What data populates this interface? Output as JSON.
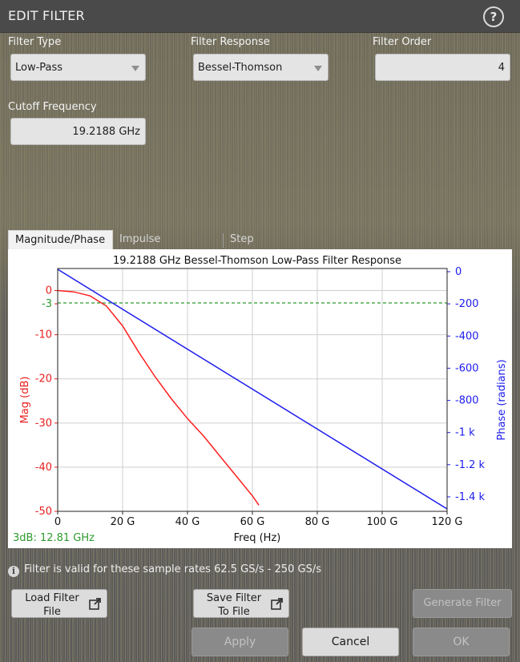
{
  "dialog": {
    "title": "EDIT FILTER",
    "help_icon": "question-circle-icon",
    "help_glyph": "?"
  },
  "fields": {
    "filter_type": {
      "label": "Filter Type",
      "value": "Low-Pass"
    },
    "filter_response": {
      "label": "Filter Response",
      "value": "Bessel-Thomson"
    },
    "filter_order": {
      "label": "Filter Order",
      "value": "4"
    },
    "cutoff_frequency": {
      "label": "Cutoff Frequency",
      "value": "19.2188 GHz"
    }
  },
  "tabs": [
    {
      "label": "Magnitude/Phase",
      "active": true
    },
    {
      "label": "Impulse Response",
      "active": false
    },
    {
      "label": "Step Response",
      "active": false
    }
  ],
  "chart_data": {
    "type": "line",
    "title": "19.2188 GHz Bessel-Thomson Low-Pass Filter Response",
    "xlabel": "Freq (Hz)",
    "ylabel_left": "Mag (dB)",
    "ylabel_right": "Phase (radians)",
    "xlim": [
      0,
      120
    ],
    "ylim_left": [
      -50,
      5
    ],
    "ylim_right": [
      -1490,
      20
    ],
    "x_ticks": [
      0,
      20,
      40,
      60,
      80,
      100,
      120
    ],
    "x_tick_labels": [
      "0",
      "20 G",
      "40 G",
      "60 G",
      "80 G",
      "100 G",
      "120 G"
    ],
    "y_left_ticks": [
      0,
      -3,
      -10,
      -20,
      -30,
      -40,
      -50
    ],
    "y_left_tick_labels": [
      "0",
      "-3",
      "-10",
      "-20",
      "-30",
      "-40",
      "-50"
    ],
    "y_right_ticks": [
      0,
      -200,
      -400,
      -600,
      -800,
      -1000,
      -1200,
      -1400
    ],
    "y_right_tick_labels": [
      "0",
      "-200",
      "-400",
      "-600",
      "-800",
      "-1 k",
      "-1.2 k",
      "-1.4 k"
    ],
    "grid": true,
    "threshold_label": "3dB: 12.81 GHz",
    "threshold_db": -2.8,
    "series": [
      {
        "axis": "left",
        "color": "#ff2020",
        "x": [
          0,
          5,
          10,
          15,
          20,
          25,
          30,
          35,
          40,
          45,
          50,
          55,
          60,
          62
        ],
        "values": [
          0,
          -0.3,
          -1.2,
          -3.5,
          -8,
          -14,
          -19.5,
          -24.5,
          -29,
          -33,
          -37.5,
          -42,
          -46.5,
          -48.6
        ]
      },
      {
        "axis": "right",
        "color": "#1c1cee",
        "x": [
          0,
          120
        ],
        "values": [
          15,
          -1475
        ]
      }
    ],
    "colors": {
      "threshold": "#2e9a2e",
      "mag_axis": "#e81e1e",
      "phase_axis": "#1c1cee"
    }
  },
  "info": {
    "icon": "info-icon",
    "glyph": "i",
    "text": "Filter is valid for these sample rates 62.5 GS/s - 250 GS/s"
  },
  "buttons": {
    "load_filter_file": {
      "line1": "Load Filter",
      "line2": "File",
      "icon": "external-link-icon"
    },
    "save_filter_file": {
      "line1": "Save Filter",
      "line2": "To File",
      "icon": "external-link-icon"
    },
    "generate_filter": "Generate Filter",
    "apply": "Apply",
    "cancel": "Cancel",
    "ok": "OK"
  }
}
